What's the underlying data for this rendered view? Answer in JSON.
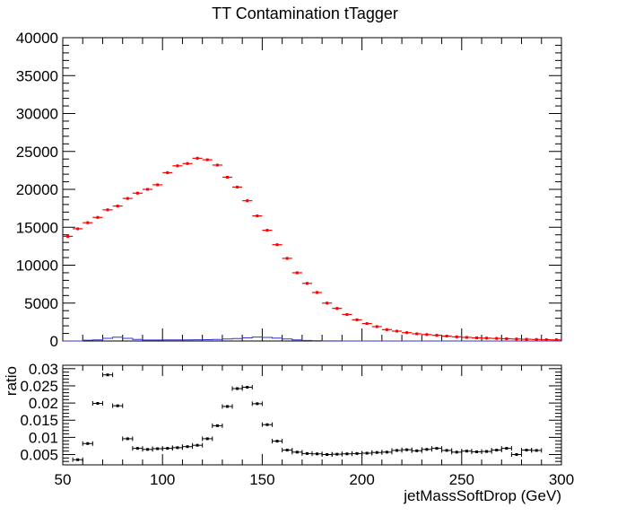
{
  "chart_data": [
    {
      "type": "scatter",
      "title": "TT Contamination tTagger",
      "xlabel": "",
      "ylabel": "",
      "xlim": [
        50,
        300
      ],
      "ylim": [
        0,
        40000
      ],
      "yticks": [
        0,
        5000,
        10000,
        15000,
        20000,
        25000,
        30000,
        35000,
        40000
      ],
      "grid": false,
      "bin_width": 5,
      "series": [
        {
          "color": "#ff0000",
          "x": [
            52.5,
            57.5,
            62.5,
            67.5,
            72.5,
            77.5,
            82.5,
            87.5,
            92.5,
            97.5,
            102.5,
            107.5,
            112.5,
            117.5,
            122.5,
            127.5,
            132.5,
            137.5,
            142.5,
            147.5,
            152.5,
            157.5,
            162.5,
            167.5,
            172.5,
            177.5,
            182.5,
            187.5,
            192.5,
            197.5,
            202.5,
            207.5,
            212.5,
            217.5,
            222.5,
            227.5,
            232.5,
            237.5,
            242.5,
            247.5,
            252.5,
            257.5,
            262.5,
            267.5,
            272.5,
            277.5,
            282.5,
            287.5,
            292.5,
            297.5
          ],
          "y": [
            13800,
            14800,
            15600,
            16300,
            17300,
            17800,
            18800,
            19500,
            20000,
            20600,
            22200,
            23100,
            23400,
            24100,
            23900,
            23200,
            21600,
            20300,
            18500,
            16500,
            14600,
            12700,
            10900,
            9000,
            7600,
            6400,
            5000,
            4300,
            3500,
            2800,
            2300,
            1900,
            1500,
            1300,
            1100,
            950,
            850,
            750,
            650,
            550,
            480,
            420,
            380,
            340,
            300,
            260,
            230,
            200,
            170,
            150
          ]
        },
        {
          "color": "#3333cc",
          "style": "histogram-line",
          "x": [
            52.5,
            57.5,
            62.5,
            67.5,
            72.5,
            77.5,
            82.5,
            87.5,
            92.5,
            97.5,
            102.5,
            107.5,
            112.5,
            117.5,
            122.5,
            127.5,
            132.5,
            137.5,
            142.5,
            147.5,
            152.5,
            157.5,
            162.5,
            167.5,
            172.5,
            177.5,
            182.5,
            187.5,
            192.5,
            197.5,
            202.5,
            207.5,
            212.5,
            217.5,
            222.5,
            227.5,
            232.5,
            237.5,
            242.5,
            247.5,
            252.5,
            257.5,
            262.5,
            267.5,
            272.5,
            277.5,
            282.5,
            287.5,
            292.5,
            297.5
          ],
          "y": [
            0,
            0,
            100,
            150,
            350,
            500,
            350,
            200,
            130,
            130,
            150,
            150,
            150,
            170,
            180,
            200,
            260,
            320,
            420,
            520,
            480,
            380,
            260,
            150,
            80,
            40,
            20,
            10,
            5,
            0,
            0,
            0,
            0,
            0,
            0,
            0,
            0,
            0,
            0,
            0,
            0,
            0,
            0,
            0,
            0,
            0,
            0,
            0,
            0,
            0
          ]
        }
      ]
    },
    {
      "type": "scatter",
      "title": "",
      "xlabel": "jetMassSoftDrop (GeV)",
      "ylabel": "ratio",
      "xlim": [
        50,
        300
      ],
      "ylim": [
        0.002,
        0.031
      ],
      "xticks": [
        50,
        100,
        150,
        200,
        250,
        300
      ],
      "yticks": [
        0.005,
        0.01,
        0.015,
        0.02,
        0.025,
        0.03
      ],
      "grid": false,
      "bin_width": 5,
      "series": [
        {
          "color": "#000000",
          "x": [
            52.5,
            57.5,
            62.5,
            67.5,
            72.5,
            77.5,
            82.5,
            87.5,
            92.5,
            97.5,
            102.5,
            107.5,
            112.5,
            117.5,
            122.5,
            127.5,
            132.5,
            137.5,
            142.5,
            147.5,
            152.5,
            157.5,
            162.5,
            167.5,
            172.5,
            177.5,
            182.5,
            187.5,
            192.5,
            197.5,
            202.5,
            207.5,
            212.5,
            217.5,
            222.5,
            227.5,
            232.5,
            237.5,
            242.5,
            247.5,
            252.5,
            257.5,
            262.5,
            267.5,
            272.5,
            277.5,
            282.5,
            287.5,
            292.5,
            297.5
          ],
          "y": [
            null,
            0.0035,
            0.0082,
            0.0199,
            0.0282,
            0.0192,
            0.0096,
            0.0068,
            0.0065,
            0.0067,
            0.0068,
            0.007,
            0.0073,
            0.0077,
            0.0096,
            0.0134,
            0.019,
            0.0242,
            0.0246,
            0.0198,
            0.0137,
            0.0089,
            0.0063,
            0.0057,
            0.0053,
            0.0052,
            0.005,
            0.0051,
            0.0052,
            0.0053,
            0.0054,
            0.0056,
            0.0057,
            0.0062,
            0.0064,
            0.0061,
            0.0065,
            0.0068,
            0.0062,
            0.0057,
            0.006,
            0.0058,
            0.0059,
            0.0063,
            0.0068,
            0.005,
            0.0063,
            0.0062,
            null,
            null
          ]
        }
      ]
    }
  ]
}
